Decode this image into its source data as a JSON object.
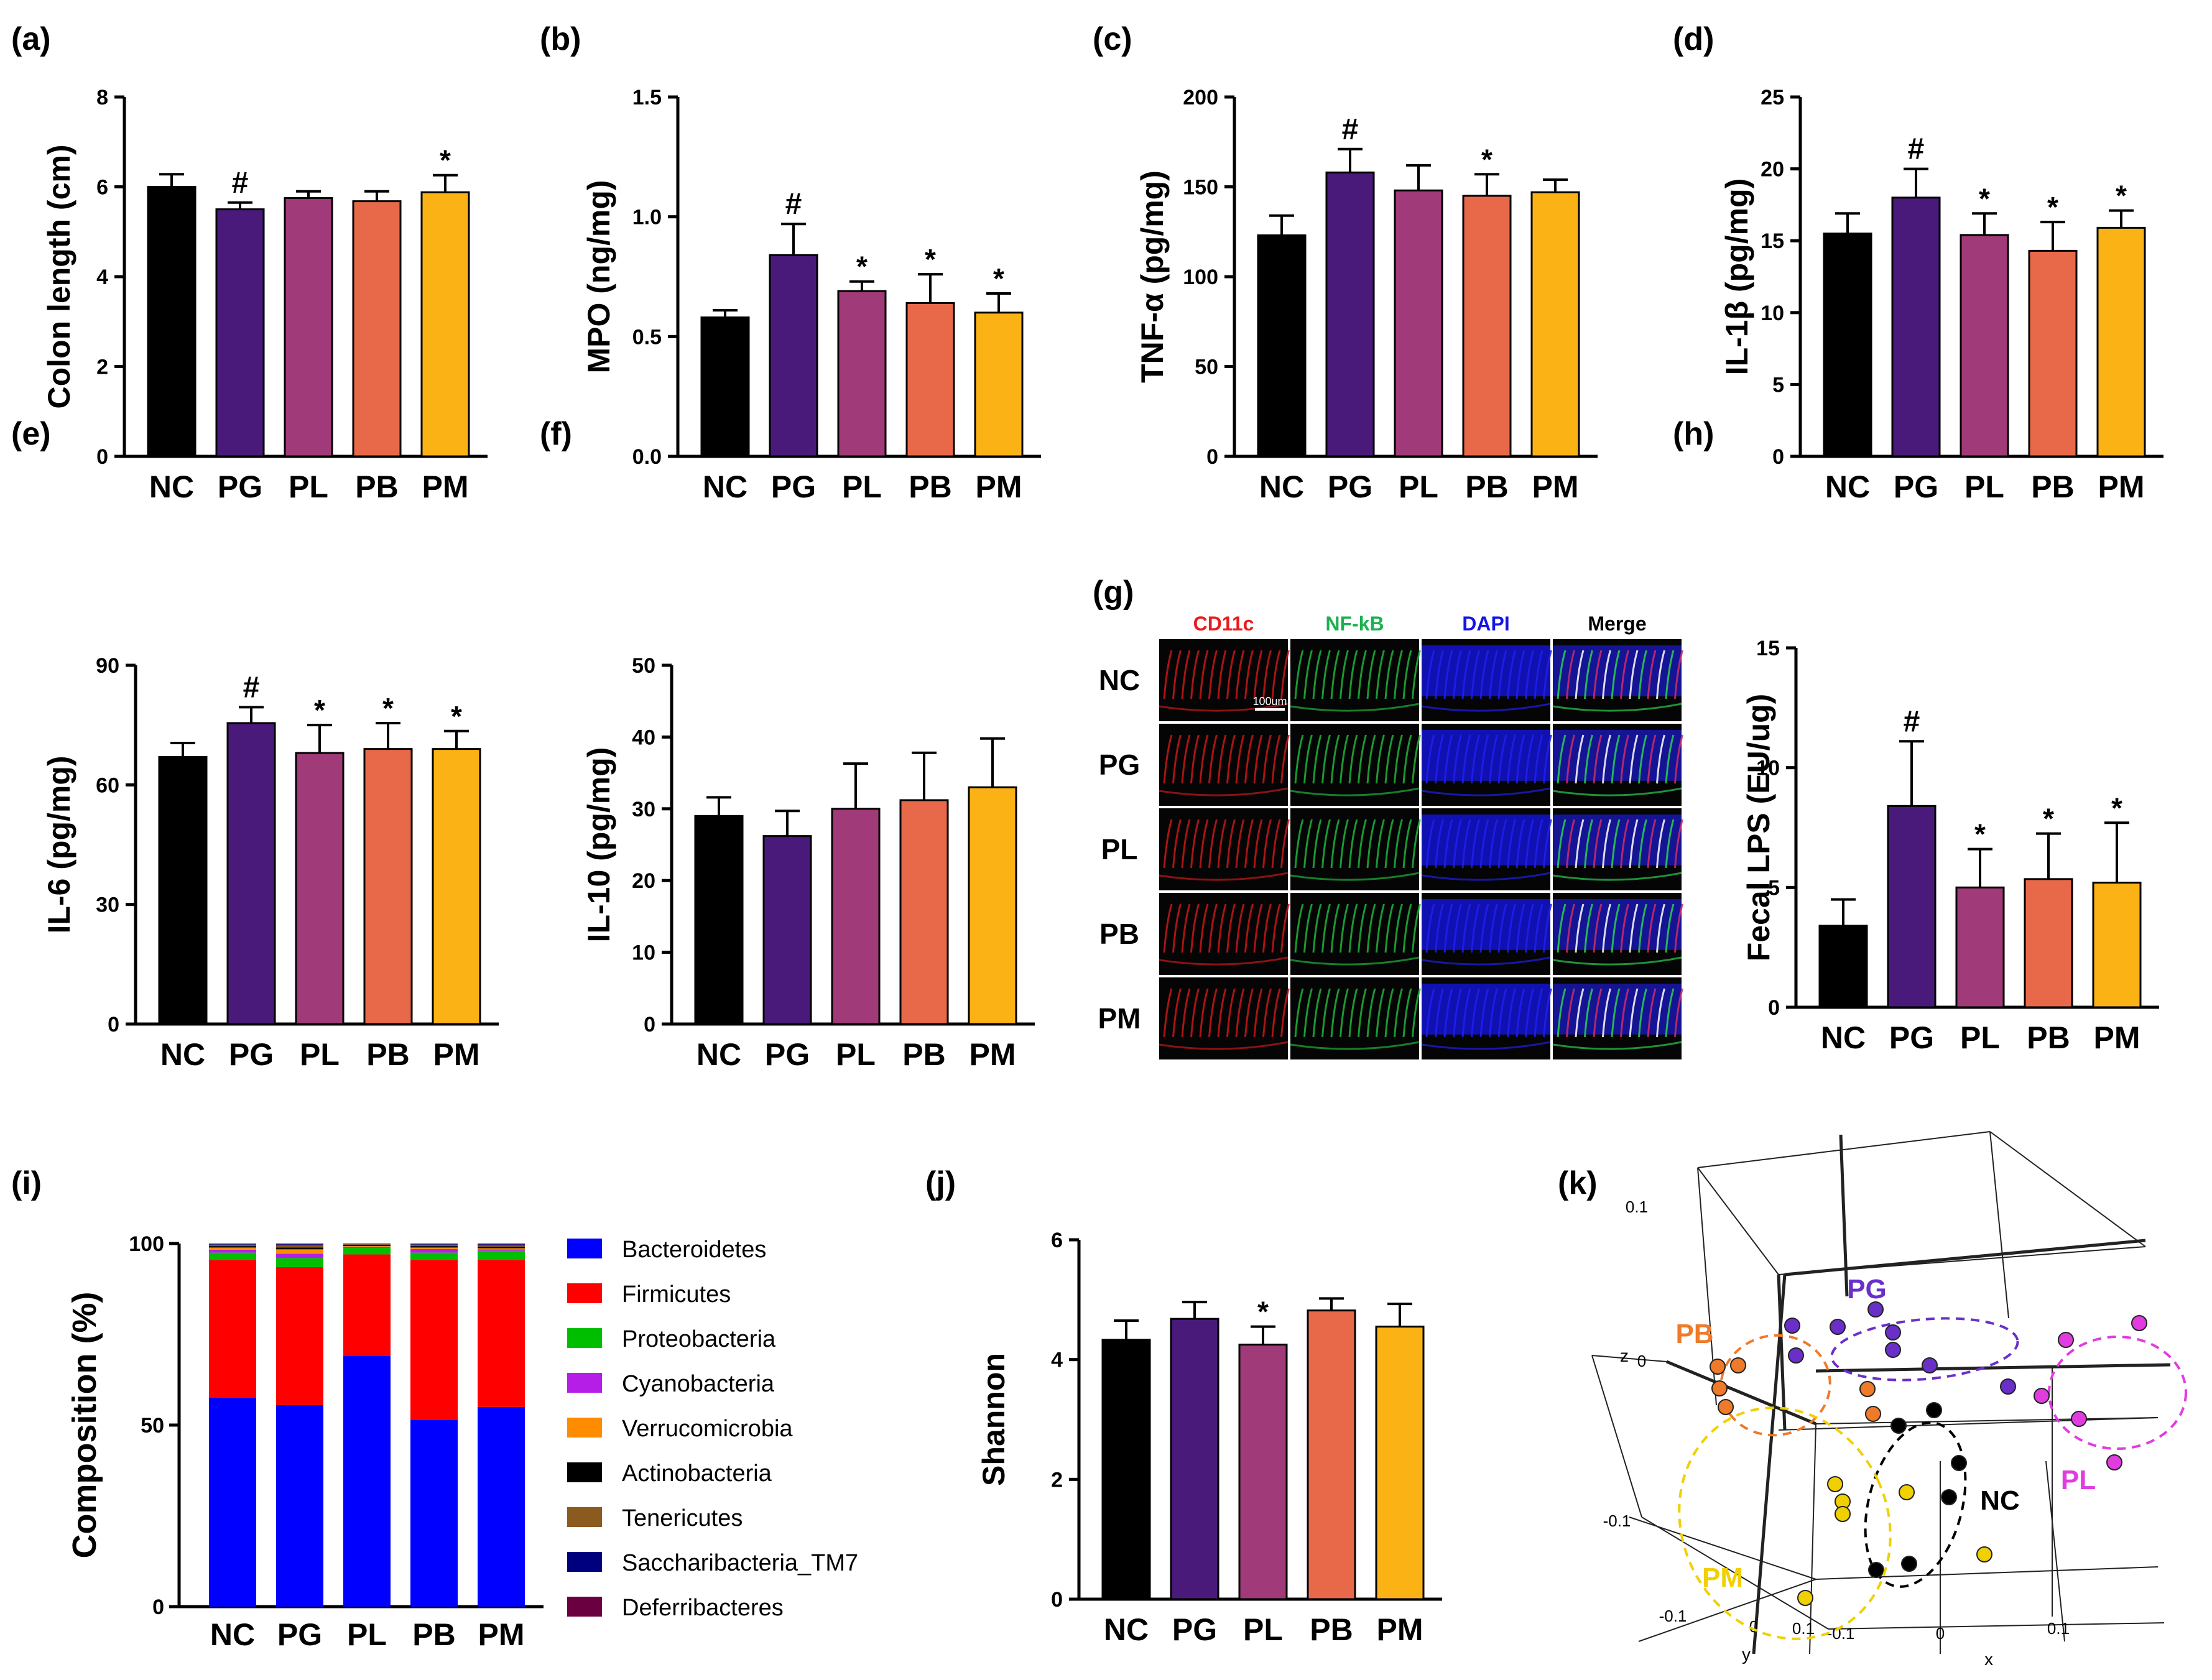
{
  "groups": [
    "NC",
    "PG",
    "PL",
    "PB",
    "PM"
  ],
  "colors": {
    "NC": "#000000",
    "PG": "#4a1a7a",
    "PL": "#a03a78",
    "PB": "#e8694a",
    "PM": "#fbb214",
    "axis": "#000000",
    "microscopy_bg": "#050505",
    "k_NC": "#000000",
    "k_PG": "#6a2fc9",
    "k_PL": "#e03ce0",
    "k_PB": "#ee7a2a",
    "k_PM": "#f0d000"
  },
  "chart_data": [
    {
      "panel": "(a)",
      "type": "bar",
      "ylabel": "Colon length (cm)",
      "ylim": [
        0,
        8
      ],
      "yticks": [
        "0",
        "2",
        "4",
        "6",
        "8"
      ],
      "categories": [
        "NC",
        "PG",
        "PL",
        "PB",
        "PM"
      ],
      "values": [
        6.0,
        5.5,
        5.75,
        5.68,
        5.88
      ],
      "errors": [
        0.28,
        0.15,
        0.15,
        0.22,
        0.38
      ],
      "marks": [
        "",
        "#",
        "",
        "",
        "*"
      ]
    },
    {
      "panel": "(b)",
      "type": "bar",
      "ylabel": "MPO (ng/mg)",
      "ylim": [
        0,
        1.5
      ],
      "yticks": [
        "0.0",
        "0.5",
        "1.0",
        "1.5"
      ],
      "categories": [
        "NC",
        "PG",
        "PL",
        "PB",
        "PM"
      ],
      "values": [
        0.58,
        0.84,
        0.69,
        0.64,
        0.6
      ],
      "errors": [
        0.03,
        0.13,
        0.04,
        0.12,
        0.08
      ],
      "marks": [
        "",
        "#",
        "*",
        "*",
        "*"
      ]
    },
    {
      "panel": "(c)",
      "type": "bar",
      "ylabel": "TNF-α (pg/mg)",
      "ylim": [
        0,
        200
      ],
      "yticks": [
        "0",
        "50",
        "100",
        "150",
        "200"
      ],
      "categories": [
        "NC",
        "PG",
        "PL",
        "PB",
        "PM"
      ],
      "values": [
        123,
        158,
        148,
        145,
        147
      ],
      "errors": [
        11,
        13,
        14,
        12,
        7
      ],
      "marks": [
        "",
        "#",
        "",
        "*",
        ""
      ]
    },
    {
      "panel": "(d)",
      "type": "bar",
      "ylabel": "IL-1β (pg/mg)",
      "ylim": [
        0,
        25
      ],
      "yticks": [
        "0",
        "5",
        "10",
        "15",
        "20",
        "25"
      ],
      "categories": [
        "NC",
        "PG",
        "PL",
        "PB",
        "PM"
      ],
      "values": [
        15.5,
        18.0,
        15.4,
        14.3,
        15.9
      ],
      "errors": [
        1.4,
        2.0,
        1.5,
        2.0,
        1.2
      ],
      "marks": [
        "",
        "#",
        "*",
        "*",
        "*"
      ]
    },
    {
      "panel": "(e)",
      "type": "bar",
      "ylabel": "IL-6 (pg/mg)",
      "ylim": [
        0,
        90
      ],
      "yticks": [
        "0",
        "30",
        "60",
        "90"
      ],
      "categories": [
        "NC",
        "PG",
        "PL",
        "PB",
        "PM"
      ],
      "values": [
        67,
        75.5,
        68,
        69,
        69
      ],
      "errors": [
        3.5,
        4.0,
        7.0,
        6.5,
        4.5
      ],
      "marks": [
        "",
        "#",
        "*",
        "*",
        "*"
      ]
    },
    {
      "panel": "(f)",
      "type": "bar",
      "ylabel": "IL-10 (pg/mg)",
      "ylim": [
        0,
        50
      ],
      "yticks": [
        "0",
        "10",
        "20",
        "30",
        "40",
        "50"
      ],
      "categories": [
        "NC",
        "PG",
        "PL",
        "PB",
        "PM"
      ],
      "values": [
        29,
        26.2,
        30,
        31.2,
        33
      ],
      "errors": [
        2.6,
        3.5,
        6.3,
        6.6,
        6.8
      ],
      "marks": [
        "",
        "",
        "",
        "",
        ""
      ]
    },
    {
      "panel": "(h)",
      "type": "bar",
      "ylabel": "Fecal LPS (EU/ug)",
      "ylim": [
        0,
        15
      ],
      "yticks": [
        "0",
        "5",
        "10",
        "15"
      ],
      "categories": [
        "NC",
        "PG",
        "PL",
        "PB",
        "PM"
      ],
      "values": [
        3.4,
        8.4,
        5.0,
        5.35,
        5.2
      ],
      "errors": [
        1.1,
        2.7,
        1.6,
        1.9,
        2.5
      ],
      "marks": [
        "",
        "#",
        "*",
        "*",
        "*"
      ]
    },
    {
      "panel": "(i)",
      "type": "stacked-bar",
      "ylabel": "Composition (%)",
      "ylim": [
        0,
        100
      ],
      "yticks": [
        "0",
        "50",
        "100"
      ],
      "categories": [
        "NC",
        "PG",
        "PL",
        "PB",
        "PM"
      ],
      "series": [
        {
          "name": "Bacteroidetes",
          "color": "#0000ff",
          "values": [
            57.5,
            55.5,
            69,
            51.5,
            55
          ]
        },
        {
          "name": "Firmicutes",
          "color": "#ff0000",
          "values": [
            38,
            38,
            28,
            44,
            40.5
          ]
        },
        {
          "name": "Proteobacteria",
          "color": "#00bf00",
          "values": [
            2,
            2.5,
            1.8,
            2,
            2.5
          ]
        },
        {
          "name": "Cyanobacteria",
          "color": "#b41ee6",
          "values": [
            0.8,
            1.2,
            0.3,
            1,
            0.4
          ]
        },
        {
          "name": "Verrucomicrobia",
          "color": "#ff8c00",
          "values": [
            0.6,
            1.2,
            0.2,
            0.4,
            0.3
          ]
        },
        {
          "name": "Actinobacteria",
          "color": "#000000",
          "values": [
            0.4,
            0.5,
            0.3,
            0.4,
            0.4
          ]
        },
        {
          "name": "Tenericutes",
          "color": "#8b5a1e",
          "values": [
            0.4,
            0.6,
            0.2,
            0.4,
            0.4
          ]
        },
        {
          "name": "Saccharibacteria_TM7",
          "color": "#00007f",
          "values": [
            0.2,
            0.3,
            0.1,
            0.2,
            0.3
          ]
        },
        {
          "name": "Deferribacteres",
          "color": "#6a0040",
          "values": [
            0.1,
            0.2,
            0.1,
            0.1,
            0.2
          ]
        }
      ]
    },
    {
      "panel": "(j)",
      "type": "bar",
      "ylabel": "Shannon",
      "ylim": [
        0,
        6
      ],
      "yticks": [
        "0",
        "2",
        "4",
        "6"
      ],
      "categories": [
        "NC",
        "PG",
        "PL",
        "PB",
        "PM"
      ],
      "values": [
        4.33,
        4.68,
        4.25,
        4.82,
        4.55
      ],
      "errors": [
        0.32,
        0.28,
        0.3,
        0.2,
        0.38
      ],
      "marks": [
        "",
        "",
        "*",
        "",
        ""
      ]
    }
  ],
  "panel_g": {
    "label": "(g)",
    "channels": [
      "CD11c",
      "NF-kB",
      "DAPI",
      "Merge"
    ],
    "channel_colors": [
      "#e81c1c",
      "#1cb050",
      "#1414e6",
      "#000000"
    ],
    "rows": [
      "NC",
      "PG",
      "PL",
      "PB",
      "PM"
    ],
    "scale_bar": "100um"
  },
  "panel_k": {
    "label": "(k)",
    "axis_z": "z",
    "axis_y": "y",
    "axis_x": "x",
    "tick_labels": [
      "0.1",
      "0",
      "-0.1",
      "-0.1",
      "0",
      "0.1",
      "-0.1",
      "0",
      "0.1"
    ],
    "groups": [
      "PG",
      "PB",
      "PL",
      "NC",
      "PM"
    ]
  }
}
